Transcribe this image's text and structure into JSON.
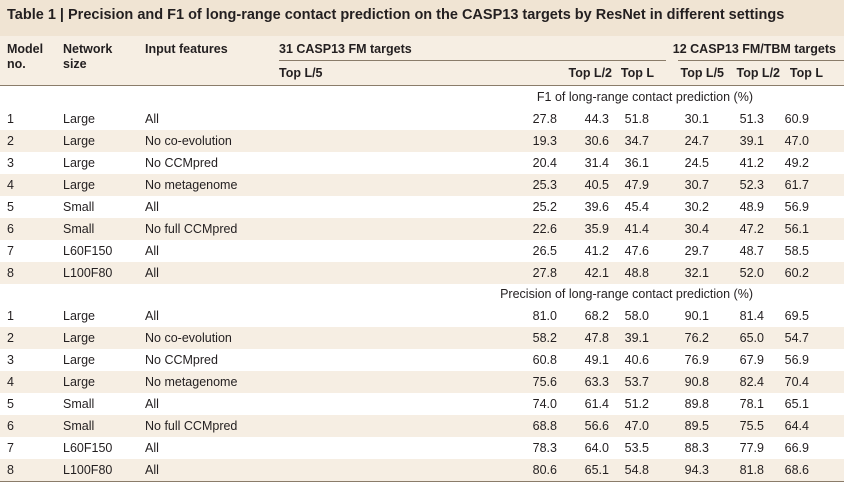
{
  "table": {
    "caption_label": "Table 1 | ",
    "caption_text": "Precision and F1 of long-range contact prediction on the CASP13 targets by ResNet in different settings",
    "headers": {
      "model_no": [
        "Model",
        "no."
      ],
      "network_size": [
        "Network",
        "size"
      ],
      "input_features": "Input features",
      "group_fm": "31 CASP13 FM targets",
      "group_fm_tbm": "12 CASP13 FM/TBM targets",
      "sub": [
        "Top L/5",
        "Top L/2",
        "Top L",
        "Top L/5",
        "Top L/2",
        "Top L"
      ]
    },
    "sections": [
      {
        "title": "F1 of long-range contact prediction (%)",
        "rows": [
          [
            "1",
            "Large",
            "All",
            "27.8",
            "44.3",
            "51.8",
            "30.1",
            "51.3",
            "60.9"
          ],
          [
            "2",
            "Large",
            "No co-evolution",
            "19.3",
            "30.6",
            "34.7",
            "24.7",
            "39.1",
            "47.0"
          ],
          [
            "3",
            "Large",
            "No CCMpred",
            "20.4",
            "31.4",
            "36.1",
            "24.5",
            "41.2",
            "49.2"
          ],
          [
            "4",
            "Large",
            "No metagenome",
            "25.3",
            "40.5",
            "47.9",
            "30.7",
            "52.3",
            "61.7"
          ],
          [
            "5",
            "Small",
            "All",
            "25.2",
            "39.6",
            "45.4",
            "30.2",
            "48.9",
            "56.9"
          ],
          [
            "6",
            "Small",
            "No full CCMpred",
            "22.6",
            "35.9",
            "41.4",
            "30.4",
            "47.2",
            "56.1"
          ],
          [
            "7",
            "L60F150",
            "All",
            "26.5",
            "41.2",
            "47.6",
            "29.7",
            "48.7",
            "58.5"
          ],
          [
            "8",
            "L100F80",
            "All",
            "27.8",
            "42.1",
            "48.8",
            "32.1",
            "52.0",
            "60.2"
          ]
        ]
      },
      {
        "title": "Precision of long-range contact prediction (%)",
        "rows": [
          [
            "1",
            "Large",
            "All",
            "81.0",
            "68.2",
            "58.0",
            "90.1",
            "81.4",
            "69.5"
          ],
          [
            "2",
            "Large",
            "No co-evolution",
            "58.2",
            "47.8",
            "39.1",
            "76.2",
            "65.0",
            "54.7"
          ],
          [
            "3",
            "Large",
            "No CCMpred",
            "60.8",
            "49.1",
            "40.6",
            "76.9",
            "67.9",
            "56.9"
          ],
          [
            "4",
            "Large",
            "No metagenome",
            "75.6",
            "63.3",
            "53.7",
            "90.8",
            "82.4",
            "70.4"
          ],
          [
            "5",
            "Small",
            "All",
            "74.0",
            "61.4",
            "51.2",
            "89.8",
            "78.1",
            "65.1"
          ],
          [
            "6",
            "Small",
            "No full CCMpred",
            "68.8",
            "56.6",
            "47.0",
            "89.5",
            "75.5",
            "64.4"
          ],
          [
            "7",
            "L60F150",
            "All",
            "78.3",
            "64.0",
            "53.5",
            "88.3",
            "77.9",
            "66.9"
          ],
          [
            "8",
            "L100F80",
            "All",
            "80.6",
            "65.1",
            "54.8",
            "94.3",
            "81.8",
            "68.6"
          ]
        ]
      }
    ]
  }
}
